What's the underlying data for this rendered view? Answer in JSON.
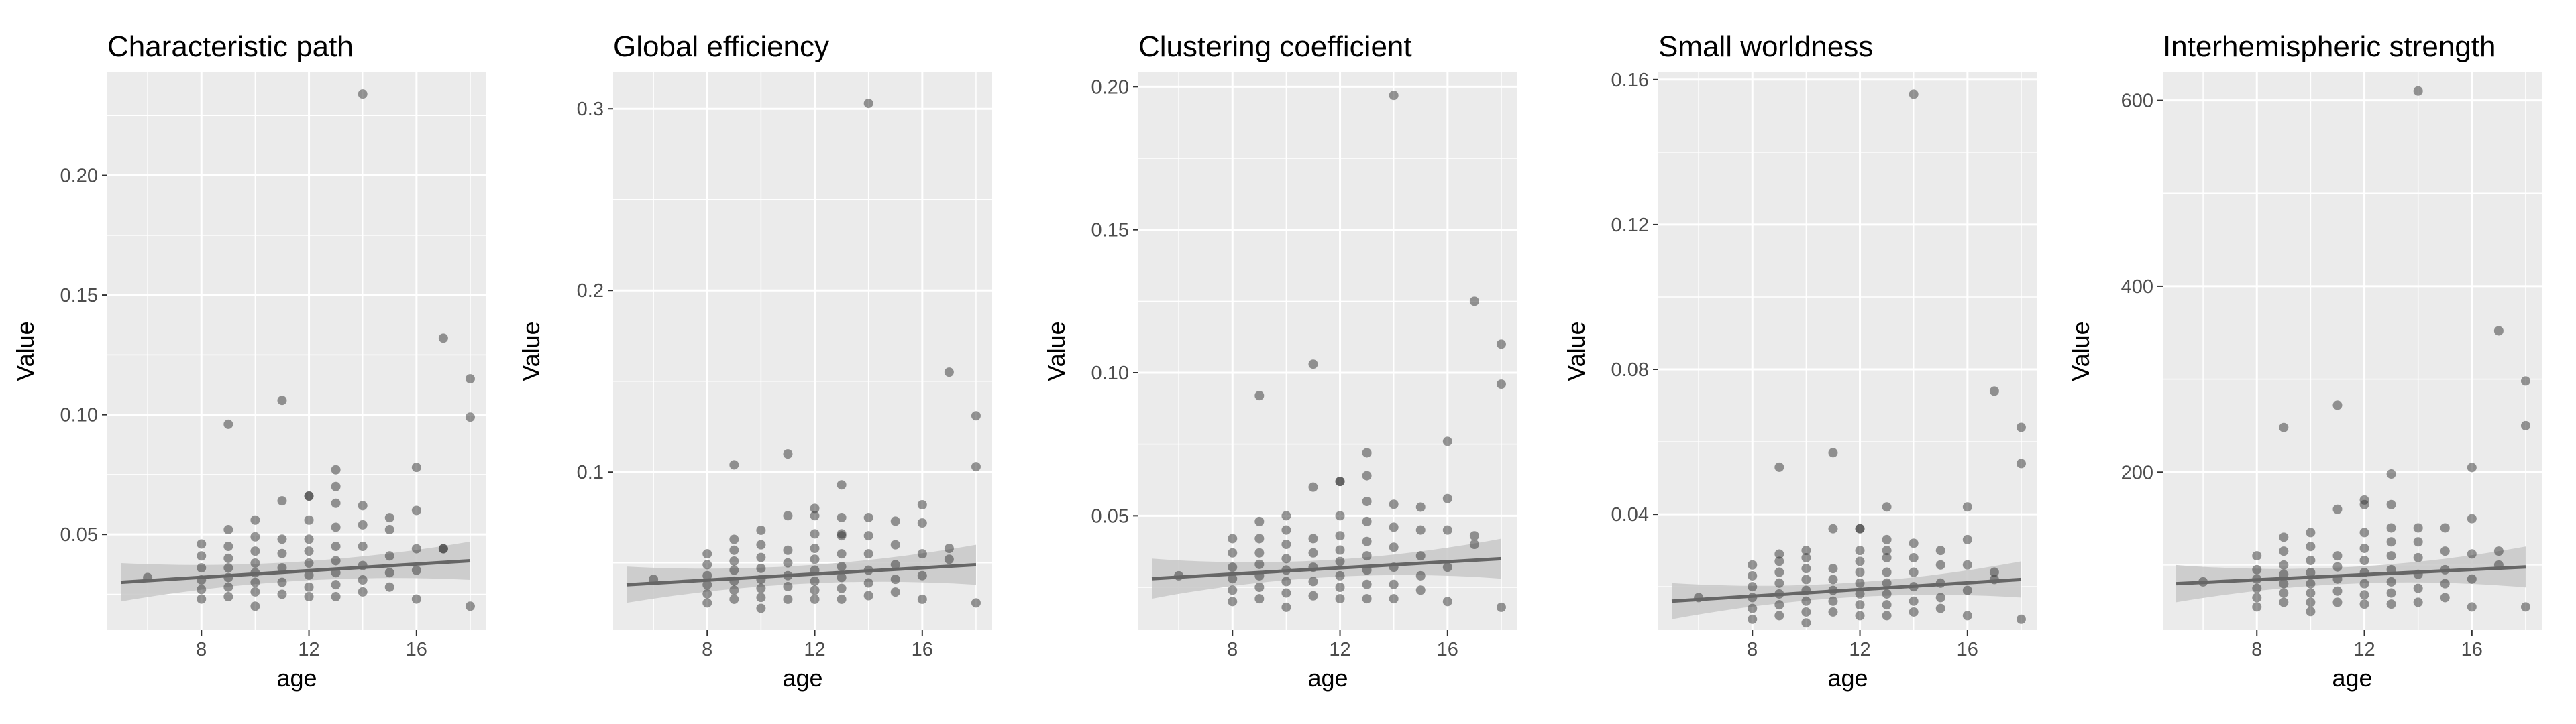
{
  "chart_data": [
    {
      "type": "scatter",
      "title": "Characteristic path",
      "xlabel": "age",
      "ylabel": "Value",
      "xlim": [
        4.5,
        18.6
      ],
      "ylim": [
        0.01,
        0.243
      ],
      "xticks": [
        8,
        12,
        16
      ],
      "yticks": [
        0.05,
        0.1,
        0.15,
        0.2
      ],
      "ytick_labels": [
        "0.05",
        "0.10",
        "0.15",
        "0.20"
      ],
      "grid": true,
      "colors": {
        "panel": "#ebebeb",
        "grid": "#ffffff",
        "point": "#333333",
        "line": "#666666",
        "band": "#c8c8c8"
      },
      "trend": {
        "x": [
          5,
          18
        ],
        "y": [
          0.03,
          0.039
        ],
        "band_halfwidth": [
          0.008,
          0.004,
          0.008
        ]
      },
      "x": [
        6,
        8,
        8,
        8,
        8,
        8,
        8,
        9,
        9,
        9,
        9,
        9,
        9,
        9,
        9,
        10,
        10,
        10,
        10,
        10,
        10,
        10,
        10,
        11,
        11,
        11,
        11,
        11,
        11,
        11,
        12,
        12,
        12,
        12,
        12,
        12,
        12,
        12,
        12,
        13,
        13,
        13,
        13,
        13,
        13,
        13,
        13,
        13,
        14,
        14,
        14,
        14,
        14,
        14,
        14,
        15,
        15,
        15,
        15,
        15,
        16,
        16,
        16,
        16,
        16,
        17,
        17,
        17,
        18,
        18,
        18
      ],
      "y": [
        0.032,
        0.023,
        0.027,
        0.031,
        0.036,
        0.041,
        0.046,
        0.024,
        0.028,
        0.032,
        0.036,
        0.04,
        0.045,
        0.052,
        0.096,
        0.02,
        0.026,
        0.03,
        0.034,
        0.038,
        0.043,
        0.049,
        0.056,
        0.025,
        0.03,
        0.036,
        0.042,
        0.048,
        0.064,
        0.106,
        0.024,
        0.028,
        0.033,
        0.038,
        0.043,
        0.048,
        0.056,
        0.066,
        0.066,
        0.024,
        0.029,
        0.034,
        0.039,
        0.045,
        0.053,
        0.063,
        0.07,
        0.077,
        0.026,
        0.031,
        0.037,
        0.045,
        0.054,
        0.062,
        0.234,
        0.028,
        0.034,
        0.041,
        0.052,
        0.057,
        0.023,
        0.035,
        0.044,
        0.06,
        0.078,
        0.044,
        0.044,
        0.132,
        0.02,
        0.099,
        0.115
      ]
    },
    {
      "type": "scatter",
      "title": "Global efficiency",
      "xlabel": "age",
      "ylabel": "Value",
      "xlim": [
        4.5,
        18.6
      ],
      "ylim": [
        0.013,
        0.32
      ],
      "xticks": [
        8,
        12,
        16
      ],
      "yticks": [
        0.1,
        0.2,
        0.3
      ],
      "ytick_labels": [
        "0.1",
        "0.2",
        "0.3"
      ],
      "grid": true,
      "colors": {
        "panel": "#ebebeb",
        "grid": "#ffffff",
        "point": "#333333",
        "line": "#666666",
        "band": "#c8c8c8"
      },
      "trend": {
        "x": [
          5,
          18
        ],
        "y": [
          0.038,
          0.049
        ],
        "band_halfwidth": [
          0.01,
          0.005,
          0.011
        ]
      },
      "x": [
        6,
        8,
        8,
        8,
        8,
        8,
        8,
        9,
        9,
        9,
        9,
        9,
        9,
        9,
        9,
        10,
        10,
        10,
        10,
        10,
        10,
        10,
        10,
        11,
        11,
        11,
        11,
        11,
        11,
        11,
        12,
        12,
        12,
        12,
        12,
        12,
        12,
        12,
        12,
        13,
        13,
        13,
        13,
        13,
        13,
        13,
        13,
        13,
        14,
        14,
        14,
        14,
        14,
        14,
        14,
        15,
        15,
        15,
        15,
        15,
        16,
        16,
        16,
        16,
        16,
        17,
        17,
        17,
        18,
        18,
        18
      ],
      "y": [
        0.041,
        0.028,
        0.033,
        0.038,
        0.043,
        0.049,
        0.055,
        0.03,
        0.035,
        0.04,
        0.046,
        0.051,
        0.057,
        0.063,
        0.104,
        0.025,
        0.031,
        0.036,
        0.041,
        0.047,
        0.053,
        0.06,
        0.068,
        0.03,
        0.037,
        0.043,
        0.05,
        0.057,
        0.076,
        0.11,
        0.03,
        0.035,
        0.04,
        0.046,
        0.052,
        0.058,
        0.066,
        0.076,
        0.08,
        0.03,
        0.036,
        0.042,
        0.048,
        0.055,
        0.065,
        0.066,
        0.075,
        0.093,
        0.032,
        0.039,
        0.046,
        0.055,
        0.065,
        0.075,
        0.303,
        0.034,
        0.041,
        0.049,
        0.06,
        0.073,
        0.03,
        0.043,
        0.055,
        0.072,
        0.082,
        0.052,
        0.058,
        0.155,
        0.028,
        0.103,
        0.131
      ]
    },
    {
      "type": "scatter",
      "title": "Clustering coefficient",
      "xlabel": "age",
      "ylabel": "Value",
      "xlim": [
        4.5,
        18.6
      ],
      "ylim": [
        0.01,
        0.205
      ],
      "xticks": [
        8,
        12,
        16
      ],
      "yticks": [
        0.05,
        0.1,
        0.15,
        0.2
      ],
      "ytick_labels": [
        "0.05",
        "0.10",
        "0.15",
        "0.20"
      ],
      "grid": true,
      "colors": {
        "panel": "#ebebeb",
        "grid": "#ffffff",
        "point": "#333333",
        "line": "#666666",
        "band": "#c8c8c8"
      },
      "trend": {
        "x": [
          5,
          18
        ],
        "y": [
          0.028,
          0.035
        ],
        "band_halfwidth": [
          0.007,
          0.003,
          0.007
        ]
      },
      "x": [
        6,
        8,
        8,
        8,
        8,
        8,
        8,
        9,
        9,
        9,
        9,
        9,
        9,
        9,
        9,
        10,
        10,
        10,
        10,
        10,
        10,
        10,
        10,
        11,
        11,
        11,
        11,
        11,
        11,
        11,
        12,
        12,
        12,
        12,
        12,
        12,
        12,
        12,
        12,
        13,
        13,
        13,
        13,
        13,
        13,
        13,
        13,
        13,
        14,
        14,
        14,
        14,
        14,
        14,
        14,
        15,
        15,
        15,
        15,
        15,
        16,
        16,
        16,
        16,
        16,
        17,
        17,
        17,
        18,
        18,
        18
      ],
      "y": [
        0.029,
        0.02,
        0.024,
        0.028,
        0.032,
        0.037,
        0.042,
        0.021,
        0.025,
        0.029,
        0.033,
        0.037,
        0.042,
        0.048,
        0.092,
        0.018,
        0.023,
        0.027,
        0.031,
        0.035,
        0.04,
        0.045,
        0.05,
        0.022,
        0.027,
        0.032,
        0.037,
        0.042,
        0.06,
        0.103,
        0.021,
        0.025,
        0.029,
        0.034,
        0.038,
        0.043,
        0.05,
        0.062,
        0.062,
        0.021,
        0.026,
        0.031,
        0.036,
        0.041,
        0.048,
        0.055,
        0.064,
        0.072,
        0.021,
        0.026,
        0.032,
        0.039,
        0.046,
        0.054,
        0.197,
        0.024,
        0.029,
        0.036,
        0.045,
        0.053,
        0.02,
        0.032,
        0.045,
        0.056,
        0.076,
        0.04,
        0.043,
        0.125,
        0.018,
        0.096,
        0.11
      ]
    },
    {
      "type": "scatter",
      "title": "Small worldness",
      "xlabel": "age",
      "ylabel": "Value",
      "xlim": [
        4.5,
        18.6
      ],
      "ylim": [
        0.008,
        0.162
      ],
      "xticks": [
        8,
        12,
        16
      ],
      "yticks": [
        0.04,
        0.08,
        0.12,
        0.16
      ],
      "ytick_labels": [
        "0.04",
        "0.08",
        "0.12",
        "0.16"
      ],
      "grid": true,
      "colors": {
        "panel": "#ebebeb",
        "grid": "#ffffff",
        "point": "#333333",
        "line": "#666666",
        "band": "#c8c8c8"
      },
      "trend": {
        "x": [
          5,
          18
        ],
        "y": [
          0.016,
          0.022
        ],
        "band_halfwidth": [
          0.005,
          0.002,
          0.005
        ]
      },
      "x": [
        6,
        8,
        8,
        8,
        8,
        8,
        8,
        9,
        9,
        9,
        9,
        9,
        9,
        9,
        9,
        10,
        10,
        10,
        10,
        10,
        10,
        10,
        10,
        11,
        11,
        11,
        11,
        11,
        11,
        11,
        12,
        12,
        12,
        12,
        12,
        12,
        12,
        12,
        12,
        13,
        13,
        13,
        13,
        13,
        13,
        13,
        13,
        13,
        14,
        14,
        14,
        14,
        14,
        14,
        14,
        15,
        15,
        15,
        15,
        15,
        16,
        16,
        16,
        16,
        16,
        17,
        17,
        17,
        18,
        18,
        18
      ],
      "y": [
        0.017,
        0.011,
        0.014,
        0.017,
        0.02,
        0.023,
        0.026,
        0.012,
        0.015,
        0.018,
        0.021,
        0.024,
        0.027,
        0.029,
        0.053,
        0.01,
        0.013,
        0.016,
        0.019,
        0.022,
        0.025,
        0.028,
        0.03,
        0.013,
        0.016,
        0.019,
        0.022,
        0.025,
        0.036,
        0.057,
        0.012,
        0.015,
        0.018,
        0.021,
        0.024,
        0.027,
        0.03,
        0.036,
        0.036,
        0.012,
        0.015,
        0.018,
        0.021,
        0.024,
        0.028,
        0.03,
        0.033,
        0.042,
        0.013,
        0.016,
        0.02,
        0.024,
        0.028,
        0.032,
        0.156,
        0.014,
        0.017,
        0.021,
        0.026,
        0.03,
        0.012,
        0.019,
        0.026,
        0.033,
        0.042,
        0.022,
        0.024,
        0.074,
        0.011,
        0.054,
        0.064
      ]
    },
    {
      "type": "scatter",
      "title": "Interhemispheric strength",
      "xlabel": "age",
      "ylabel": "Value",
      "xlim": [
        4.5,
        18.6
      ],
      "ylim": [
        30,
        630
      ],
      "xticks": [
        8,
        12,
        16
      ],
      "yticks": [
        200,
        400,
        600
      ],
      "ytick_labels": [
        "200",
        "400",
        "600"
      ],
      "grid": true,
      "colors": {
        "panel": "#ebebeb",
        "grid": "#ffffff",
        "point": "#333333",
        "line": "#666666",
        "band": "#c8c8c8"
      },
      "trend": {
        "x": [
          5,
          18
        ],
        "y": [
          80,
          98
        ],
        "band_halfwidth": [
          20,
          9,
          22
        ]
      },
      "x": [
        6,
        8,
        8,
        8,
        8,
        8,
        8,
        9,
        9,
        9,
        9,
        9,
        9,
        9,
        9,
        10,
        10,
        10,
        10,
        10,
        10,
        10,
        10,
        11,
        11,
        11,
        11,
        11,
        11,
        11,
        12,
        12,
        12,
        12,
        12,
        12,
        12,
        12,
        12,
        13,
        13,
        13,
        13,
        13,
        13,
        13,
        13,
        13,
        14,
        14,
        14,
        14,
        14,
        14,
        14,
        15,
        15,
        15,
        15,
        15,
        16,
        16,
        16,
        16,
        16,
        17,
        17,
        17,
        18,
        18,
        18
      ],
      "y": [
        82,
        55,
        65,
        75,
        85,
        95,
        110,
        60,
        70,
        80,
        90,
        100,
        115,
        130,
        248,
        50,
        60,
        70,
        80,
        92,
        105,
        120,
        135,
        60,
        72,
        85,
        98,
        110,
        160,
        272,
        58,
        68,
        80,
        92,
        105,
        118,
        135,
        165,
        170,
        58,
        70,
        82,
        95,
        110,
        125,
        140,
        165,
        198,
        60,
        75,
        90,
        108,
        125,
        140,
        610,
        65,
        80,
        95,
        115,
        140,
        55,
        85,
        112,
        150,
        205,
        100,
        115,
        352,
        55,
        250,
        298
      ]
    }
  ]
}
